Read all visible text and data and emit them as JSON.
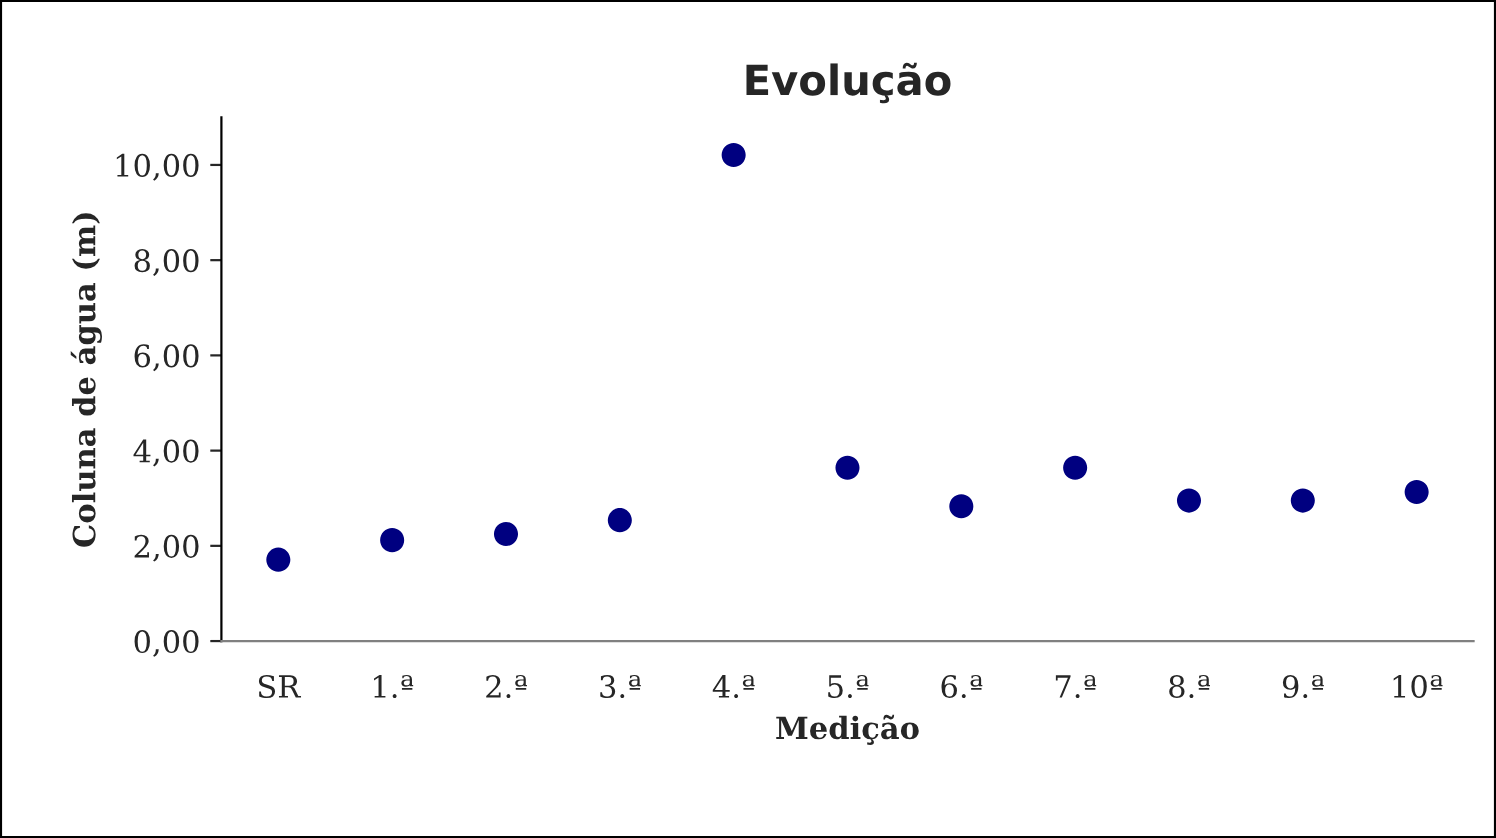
{
  "chart_data": {
    "type": "scatter",
    "title": "Evolução",
    "xlabel": "Medição",
    "ylabel": "Coluna de água (m)",
    "categories": [
      "SR",
      "1.ª",
      "2.ª",
      "3.ª",
      "4.ª",
      "5.ª",
      "6.ª",
      "7.ª",
      "8.ª",
      "9.ª",
      "10ª"
    ],
    "series": [
      {
        "color": "#000080",
        "values": [
          1.71,
          2.12,
          2.25,
          2.54,
          10.21,
          3.64,
          2.83,
          3.64,
          2.95,
          2.95,
          3.13
        ]
      }
    ],
    "ylim": [
      0,
      11
    ],
    "yticks": [
      {
        "value": 0,
        "label": "0,00"
      },
      {
        "value": 2,
        "label": "2,00"
      },
      {
        "value": 4,
        "label": "4,00"
      },
      {
        "value": 6,
        "label": "6,00"
      },
      {
        "value": 8,
        "label": "8,00"
      },
      {
        "value": 10,
        "label": "10,00"
      }
    ],
    "marker": "circle",
    "grid": false,
    "legend": false
  }
}
